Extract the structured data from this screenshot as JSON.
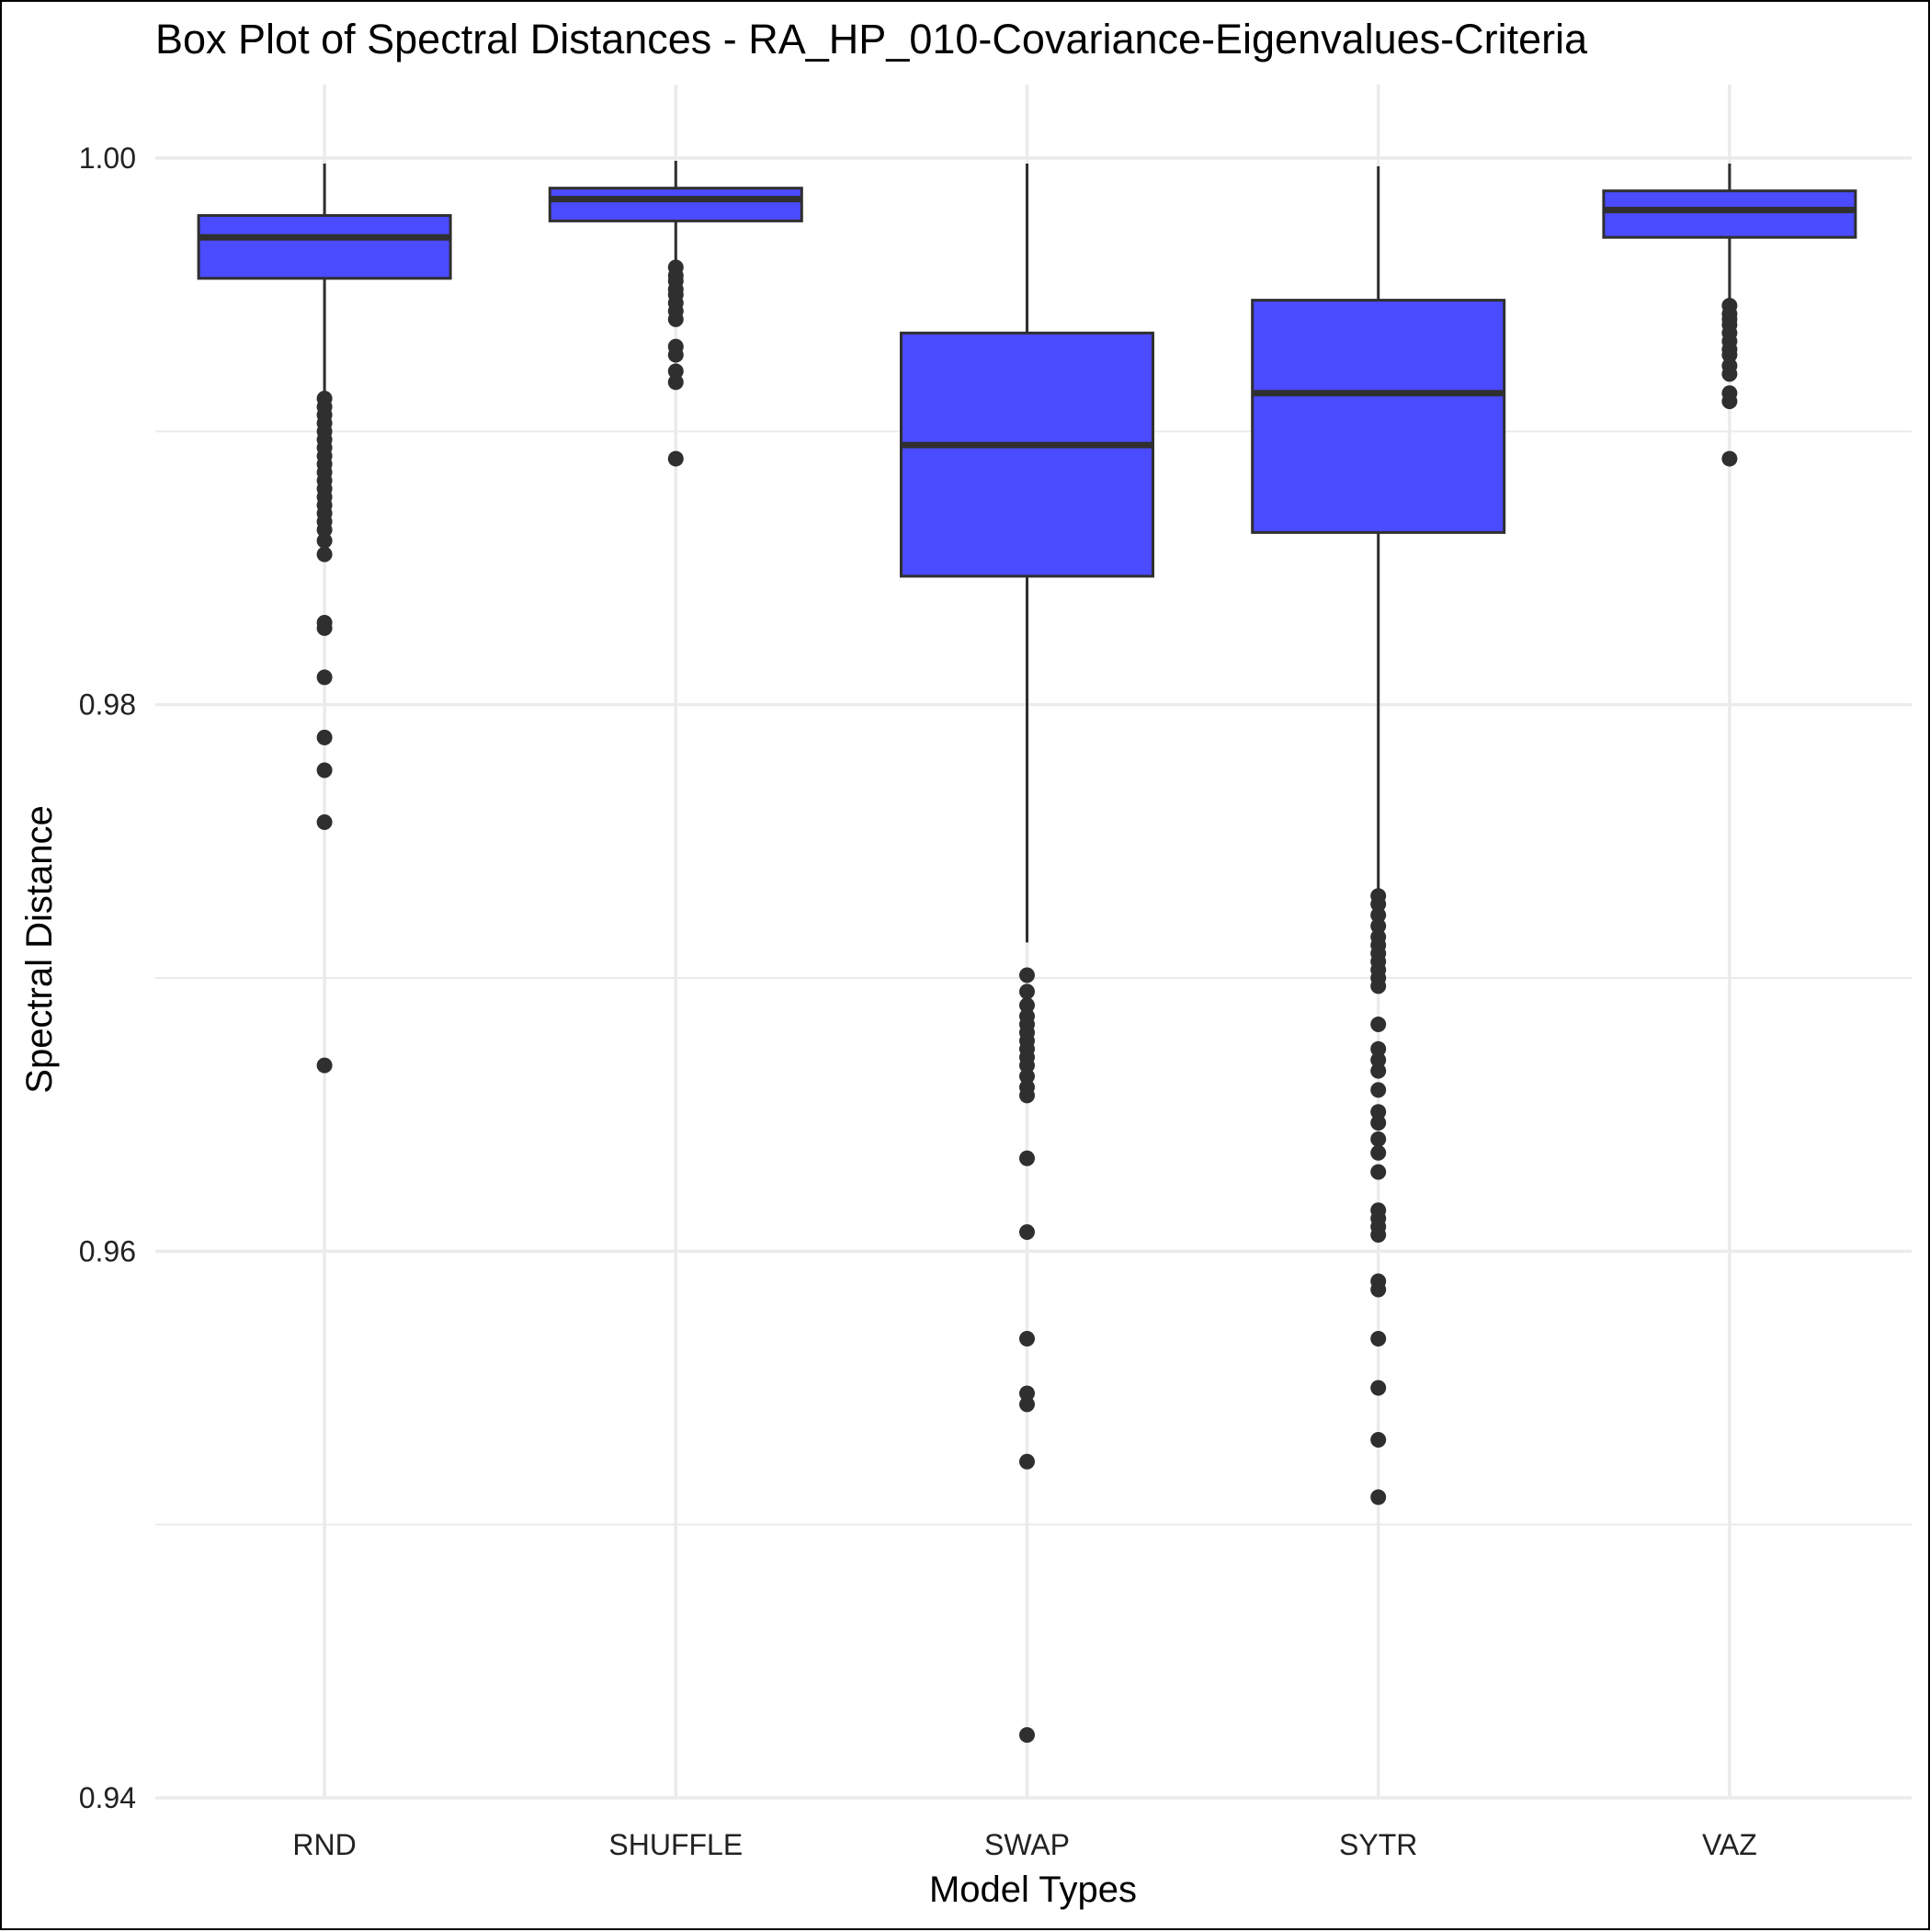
{
  "chart_data": {
    "type": "box",
    "title": "Box Plot of Spectral Distances -  RA_HP_010-Covariance-Eigenvalues-Criteria",
    "xlabel": "Model Types",
    "ylabel": "Spectral Distance",
    "ylim": [
      0.94,
      1.0015
    ],
    "yticks": [
      0.94,
      0.96,
      0.98,
      1.0
    ],
    "ytick_labels": [
      "0.94",
      "0.96",
      "0.98",
      "1.00"
    ],
    "grid": true,
    "categories": [
      "RND",
      "SHUFFLE",
      "SWAP",
      "SYTR",
      "VAZ"
    ],
    "boxes": [
      {
        "name": "RND",
        "whisker_low": 0.9913,
        "q1": 0.9956,
        "median": 0.9971,
        "q3": 0.9979,
        "whisker_high": 0.9998,
        "outliers": [
          0.9912,
          0.9909,
          0.9906,
          0.9903,
          0.99,
          0.9897,
          0.9894,
          0.9891,
          0.9888,
          0.9885,
          0.9882,
          0.9879,
          0.9876,
          0.9873,
          0.987,
          0.9867,
          0.9864,
          0.986,
          0.9855,
          0.983,
          0.9828,
          0.981,
          0.9788,
          0.9776,
          0.9757,
          0.9668
        ]
      },
      {
        "name": "SHUFFLE",
        "whisker_low": 0.9961,
        "q1": 0.9977,
        "median": 0.9985,
        "q3": 0.9989,
        "whisker_high": 0.9999,
        "outliers": [
          0.996,
          0.9957,
          0.9955,
          0.9952,
          0.995,
          0.9947,
          0.9944,
          0.9941,
          0.9931,
          0.9928,
          0.9922,
          0.9918,
          0.989
        ]
      },
      {
        "name": "SWAP",
        "whisker_low": 0.9713,
        "q1": 0.9847,
        "median": 0.9895,
        "q3": 0.9936,
        "whisker_high": 0.9998,
        "outliers": [
          0.9701,
          0.9695,
          0.969,
          0.9686,
          0.9683,
          0.968,
          0.9677,
          0.9674,
          0.9671,
          0.9668,
          0.9664,
          0.966,
          0.9657,
          0.9634,
          0.9607,
          0.9568,
          0.9548,
          0.9544,
          0.9523,
          0.9423
        ]
      },
      {
        "name": "SYTR",
        "whisker_low": 0.9732,
        "q1": 0.9863,
        "median": 0.9914,
        "q3": 0.9948,
        "whisker_high": 0.9997,
        "outliers": [
          0.973,
          0.9727,
          0.9723,
          0.9719,
          0.9715,
          0.9712,
          0.9709,
          0.9706,
          0.9703,
          0.97,
          0.9697,
          0.9683,
          0.9674,
          0.967,
          0.9666,
          0.9659,
          0.9651,
          0.9647,
          0.9641,
          0.9636,
          0.9629,
          0.9615,
          0.9612,
          0.9609,
          0.9606,
          0.9589,
          0.9586,
          0.9568,
          0.955,
          0.9531,
          0.951
        ]
      },
      {
        "name": "VAZ",
        "whisker_low": 0.9947,
        "q1": 0.9971,
        "median": 0.9981,
        "q3": 0.9988,
        "whisker_high": 0.9998,
        "outliers": [
          0.9946,
          0.9943,
          0.9941,
          0.9939,
          0.9936,
          0.9933,
          0.993,
          0.9928,
          0.9924,
          0.9921,
          0.9914,
          0.9911,
          0.989
        ]
      }
    ],
    "colors": {
      "box_fill": "#4B4BFF",
      "box_stroke": "#2F2F2F",
      "point": "#2F2F2F",
      "grid": "#EBEBEB"
    }
  }
}
